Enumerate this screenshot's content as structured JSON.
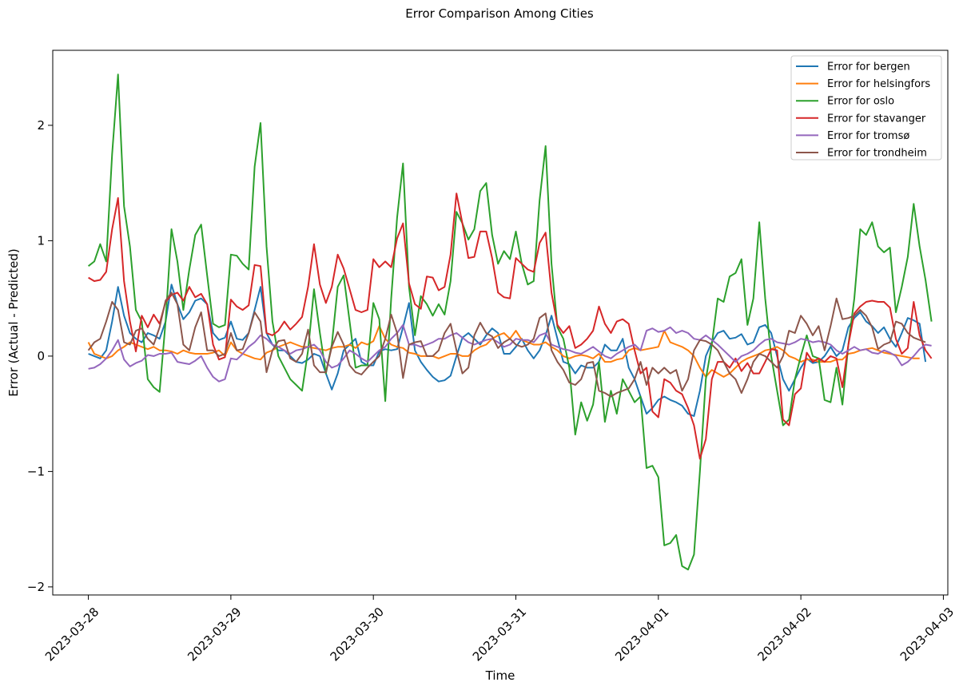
{
  "chart_data": {
    "type": "line",
    "title": "Error Comparison Among Cities",
    "xlabel": "Time",
    "ylabel": "Error (Actual - Predicted)",
    "xlim": [
      "2023-03-27T18:00",
      "2023-04-03T00:45"
    ],
    "ylim": [
      -2.07,
      2.65
    ],
    "x_ticks": [
      "2023-03-28",
      "2023-03-29",
      "2023-03-30",
      "2023-03-31",
      "2023-04-01",
      "2023-04-02",
      "2023-04-03"
    ],
    "y_ticks": [
      -2,
      -1,
      0,
      1,
      2
    ],
    "y_tick_labels": [
      "−2",
      "−1",
      "0",
      "1",
      "2"
    ],
    "x_start": "2023-03-28T00:00",
    "x_step_hours": 1,
    "grid": false,
    "legend_position": "top-right",
    "series": [
      {
        "name": "Error for bergen",
        "color": "#1f77b4",
        "values": [
          0.02,
          0.0,
          -0.02,
          0.05,
          0.3,
          0.6,
          0.35,
          0.2,
          0.15,
          0.12,
          0.2,
          0.18,
          0.15,
          0.3,
          0.62,
          0.45,
          0.32,
          0.38,
          0.48,
          0.5,
          0.45,
          0.2,
          0.14,
          0.16,
          0.3,
          0.15,
          0.14,
          0.2,
          0.4,
          0.6,
          0.2,
          0.1,
          0.05,
          0.05,
          0.0,
          -0.05,
          -0.06,
          -0.03,
          0.02,
          0.0,
          -0.15,
          -0.29,
          -0.15,
          0.05,
          0.1,
          0.15,
          -0.05,
          -0.08,
          -0.08,
          0.04,
          0.06,
          0.05,
          0.06,
          0.25,
          0.46,
          0.05,
          -0.05,
          -0.12,
          -0.18,
          -0.22,
          -0.21,
          -0.17,
          0.0,
          0.16,
          0.2,
          0.15,
          0.1,
          0.18,
          0.24,
          0.2,
          0.02,
          0.02,
          0.08,
          0.15,
          0.05,
          -0.02,
          0.05,
          0.18,
          0.35,
          0.15,
          -0.05,
          -0.07,
          -0.15,
          -0.08,
          -0.1,
          -0.1,
          -0.05,
          0.1,
          0.05,
          0.05,
          0.15,
          -0.1,
          -0.2,
          -0.35,
          -0.5,
          -0.45,
          -0.38,
          -0.35,
          -0.38,
          -0.4,
          -0.43,
          -0.5,
          -0.52,
          -0.3,
          0.0,
          0.12,
          0.2,
          0.22,
          0.15,
          0.16,
          0.19,
          0.1,
          0.12,
          0.25,
          0.27,
          0.2,
          0.0,
          -0.2,
          -0.3,
          -0.2,
          -0.1,
          -0.02,
          -0.06,
          -0.05,
          0.0,
          0.08,
          0.0,
          0.05,
          0.25,
          0.33,
          0.38,
          0.3,
          0.26,
          0.2,
          0.25,
          0.15,
          0.08,
          0.2,
          0.33,
          0.31,
          0.28,
          -0.05
        ]
      },
      {
        "name": "Error for helsingfors",
        "color": "#ff7f0e",
        "values": [
          0.12,
          0.02,
          0.0,
          -0.02,
          0.0,
          0.05,
          0.08,
          0.12,
          0.1,
          0.08,
          0.06,
          0.08,
          0.05,
          0.05,
          0.04,
          0.02,
          0.05,
          0.03,
          0.02,
          0.02,
          0.02,
          0.03,
          0.05,
          0.0,
          0.12,
          0.05,
          0.02,
          0.0,
          -0.02,
          -0.03,
          0.03,
          0.05,
          0.08,
          0.1,
          0.12,
          0.1,
          0.08,
          0.08,
          0.07,
          0.06,
          0.05,
          0.07,
          0.08,
          0.08,
          0.1,
          0.07,
          0.12,
          0.1,
          0.13,
          0.26,
          0.15,
          0.1,
          0.08,
          0.07,
          0.03,
          0.02,
          0.0,
          0.0,
          0.0,
          -0.02,
          0.0,
          0.02,
          0.02,
          0.0,
          0.0,
          0.05,
          0.08,
          0.1,
          0.15,
          0.18,
          0.2,
          0.15,
          0.22,
          0.14,
          0.12,
          0.1,
          0.1,
          0.12,
          0.08,
          0.05,
          0.0,
          -0.02,
          0.0,
          0.01,
          0.0,
          -0.02,
          0.02,
          -0.05,
          -0.05,
          -0.03,
          -0.02,
          0.05,
          0.07,
          0.05,
          0.06,
          0.07,
          0.08,
          0.22,
          0.12,
          0.1,
          0.08,
          0.05,
          0.0,
          -0.1,
          -0.18,
          -0.12,
          -0.15,
          -0.18,
          -0.15,
          -0.1,
          -0.05,
          -0.02,
          0.0,
          0.02,
          0.05,
          0.06,
          0.08,
          0.05,
          0.0,
          -0.02,
          -0.05,
          -0.03,
          -0.03,
          -0.05,
          -0.05,
          -0.05,
          -0.03,
          -0.03,
          0.02,
          0.03,
          0.05,
          0.06,
          0.07,
          0.05,
          0.03,
          0.02,
          0.01,
          0.0,
          -0.01,
          -0.02,
          -0.02
        ]
      },
      {
        "name": "Error for oslo",
        "color": "#2ca02c",
        "values": [
          0.78,
          0.82,
          0.97,
          0.82,
          1.75,
          2.44,
          1.3,
          0.95,
          0.4,
          0.3,
          -0.2,
          -0.27,
          -0.31,
          0.3,
          1.1,
          0.82,
          0.4,
          0.75,
          1.05,
          1.14,
          0.7,
          0.28,
          0.25,
          0.27,
          0.88,
          0.87,
          0.8,
          0.75,
          1.64,
          2.02,
          0.95,
          0.3,
          0.0,
          -0.1,
          -0.2,
          -0.25,
          -0.3,
          0.05,
          0.58,
          0.2,
          -0.15,
          0.1,
          0.6,
          0.7,
          0.3,
          -0.1,
          -0.08,
          -0.08,
          0.46,
          0.32,
          -0.39,
          0.5,
          1.2,
          1.67,
          0.6,
          0.18,
          0.52,
          0.45,
          0.35,
          0.45,
          0.36,
          0.65,
          1.25,
          1.15,
          1.01,
          1.1,
          1.43,
          1.5,
          1.05,
          0.8,
          0.91,
          0.84,
          1.08,
          0.8,
          0.62,
          0.65,
          1.35,
          1.82,
          0.8,
          0.25,
          0.15,
          -0.1,
          -0.68,
          -0.4,
          -0.56,
          -0.42,
          -0.05,
          -0.57,
          -0.3,
          -0.5,
          -0.2,
          -0.3,
          -0.4,
          -0.35,
          -0.97,
          -0.95,
          -1.05,
          -1.64,
          -1.62,
          -1.55,
          -1.82,
          -1.85,
          -1.72,
          -1.0,
          -0.2,
          0.1,
          0.5,
          0.47,
          0.69,
          0.72,
          0.84,
          0.27,
          0.5,
          1.16,
          0.5,
          0.0,
          -0.3,
          -0.6,
          -0.55,
          -0.2,
          0.0,
          0.18,
          0.0,
          -0.02,
          -0.38,
          -0.4,
          -0.1,
          -0.42,
          0.1,
          0.5,
          1.1,
          1.05,
          1.16,
          0.95,
          0.9,
          0.94,
          0.38,
          0.6,
          0.86,
          1.32,
          0.95,
          0.66,
          0.3
        ]
      },
      {
        "name": "Error for stavanger",
        "color": "#d62728",
        "values": [
          0.68,
          0.65,
          0.66,
          0.73,
          1.1,
          1.37,
          0.65,
          0.3,
          0.04,
          0.35,
          0.25,
          0.36,
          0.28,
          0.47,
          0.53,
          0.55,
          0.48,
          0.6,
          0.51,
          0.54,
          0.45,
          0.1,
          -0.03,
          -0.01,
          0.49,
          0.43,
          0.4,
          0.44,
          0.79,
          0.78,
          0.2,
          0.18,
          0.22,
          0.3,
          0.23,
          0.28,
          0.34,
          0.6,
          0.97,
          0.62,
          0.46,
          0.6,
          0.88,
          0.76,
          0.58,
          0.4,
          0.38,
          0.4,
          0.84,
          0.77,
          0.82,
          0.77,
          1.02,
          1.15,
          0.63,
          0.45,
          0.41,
          0.69,
          0.68,
          0.57,
          0.6,
          0.88,
          1.41,
          1.15,
          0.85,
          0.86,
          1.08,
          1.08,
          0.85,
          0.55,
          0.51,
          0.5,
          0.85,
          0.8,
          0.75,
          0.73,
          0.98,
          1.07,
          0.55,
          0.27,
          0.2,
          0.26,
          0.07,
          0.1,
          0.15,
          0.22,
          0.43,
          0.28,
          0.2,
          0.3,
          0.32,
          0.28,
          0.05,
          -0.15,
          -0.1,
          -0.48,
          -0.53,
          -0.2,
          -0.23,
          -0.3,
          -0.33,
          -0.45,
          -0.6,
          -0.89,
          -0.72,
          -0.2,
          -0.05,
          -0.05,
          -0.1,
          -0.02,
          -0.13,
          -0.06,
          -0.15,
          -0.15,
          -0.05,
          0.06,
          0.05,
          -0.55,
          -0.6,
          -0.33,
          -0.28,
          0.03,
          -0.05,
          -0.02,
          -0.05,
          0.0,
          -0.02,
          -0.27,
          0.1,
          0.37,
          0.43,
          0.47,
          0.48,
          0.47,
          0.47,
          0.42,
          0.15,
          0.02,
          0.07,
          0.47,
          0.18,
          0.05,
          -0.02
        ]
      },
      {
        "name": "Error for tromsø",
        "color": "#9467bd",
        "values": [
          -0.11,
          -0.1,
          -0.07,
          -0.02,
          0.05,
          0.14,
          -0.03,
          -0.09,
          -0.06,
          -0.04,
          0.01,
          0.0,
          0.02,
          0.02,
          0.03,
          -0.05,
          -0.06,
          -0.07,
          -0.04,
          0.0,
          -0.1,
          -0.18,
          -0.22,
          -0.2,
          -0.02,
          -0.03,
          0.02,
          0.08,
          0.12,
          0.18,
          0.15,
          0.1,
          0.08,
          0.05,
          0.02,
          0.05,
          0.06,
          0.08,
          0.1,
          0.05,
          -0.05,
          -0.1,
          -0.08,
          -0.02,
          0.05,
          0.02,
          -0.02,
          -0.05,
          0.0,
          0.05,
          0.08,
          0.15,
          0.2,
          0.27,
          0.1,
          0.1,
          0.08,
          0.1,
          0.12,
          0.15,
          0.15,
          0.18,
          0.2,
          0.16,
          0.12,
          0.1,
          0.12,
          0.14,
          0.15,
          0.12,
          0.08,
          0.1,
          0.15,
          0.14,
          0.14,
          0.12,
          0.18,
          0.2,
          0.1,
          0.08,
          0.06,
          0.05,
          0.03,
          0.02,
          0.05,
          0.08,
          0.04,
          0.0,
          -0.02,
          0.02,
          0.05,
          0.08,
          0.1,
          0.05,
          0.22,
          0.24,
          0.21,
          0.22,
          0.25,
          0.2,
          0.22,
          0.2,
          0.15,
          0.14,
          0.18,
          0.14,
          0.1,
          0.05,
          0.0,
          -0.05,
          0.0,
          0.02,
          0.05,
          0.1,
          0.14,
          0.15,
          0.12,
          0.11,
          0.1,
          0.12,
          0.15,
          0.14,
          0.12,
          0.13,
          0.12,
          0.1,
          0.05,
          0.02,
          0.05,
          0.08,
          0.05,
          0.06,
          0.03,
          0.02,
          0.05,
          0.03,
          0.0,
          -0.08,
          -0.05,
          0.0,
          0.06,
          0.1,
          0.09
        ]
      },
      {
        "name": "Error for trondheim",
        "color": "#8c564b",
        "values": [
          0.05,
          0.12,
          0.15,
          0.3,
          0.47,
          0.4,
          0.12,
          0.1,
          0.22,
          0.24,
          0.15,
          0.1,
          0.25,
          0.48,
          0.55,
          0.45,
          0.1,
          0.05,
          0.25,
          0.38,
          0.05,
          0.05,
          0.0,
          0.02,
          0.2,
          0.05,
          0.06,
          0.2,
          0.38,
          0.3,
          -0.14,
          0.05,
          0.13,
          0.14,
          -0.02,
          -0.05,
          0.02,
          0.23,
          -0.08,
          -0.14,
          -0.14,
          0.08,
          0.21,
          0.1,
          -0.08,
          -0.14,
          -0.16,
          -0.1,
          -0.05,
          0.0,
          0.15,
          0.36,
          0.2,
          -0.19,
          0.1,
          0.12,
          0.13,
          0.0,
          0.0,
          0.05,
          0.2,
          0.28,
          0.05,
          -0.15,
          -0.1,
          0.18,
          0.29,
          0.2,
          0.17,
          0.07,
          0.12,
          0.15,
          0.1,
          0.08,
          0.1,
          0.15,
          0.33,
          0.37,
          0.05,
          -0.05,
          -0.12,
          -0.23,
          -0.25,
          -0.2,
          -0.06,
          -0.05,
          -0.3,
          -0.32,
          -0.35,
          -0.32,
          -0.3,
          -0.28,
          -0.2,
          -0.05,
          -0.25,
          -0.1,
          -0.15,
          -0.1,
          -0.15,
          -0.12,
          -0.3,
          -0.2,
          0.05,
          0.14,
          0.13,
          0.1,
          0.05,
          -0.05,
          -0.15,
          -0.2,
          -0.32,
          -0.2,
          -0.05,
          0.02,
          0.0,
          -0.05,
          -0.1,
          0.0,
          0.22,
          0.2,
          0.35,
          0.28,
          0.18,
          0.26,
          0.05,
          0.26,
          0.5,
          0.32,
          0.33,
          0.35,
          0.4,
          0.35,
          0.25,
          0.06,
          0.1,
          0.12,
          0.3,
          0.28,
          0.2,
          0.16,
          0.14,
          0.12
        ]
      }
    ]
  }
}
